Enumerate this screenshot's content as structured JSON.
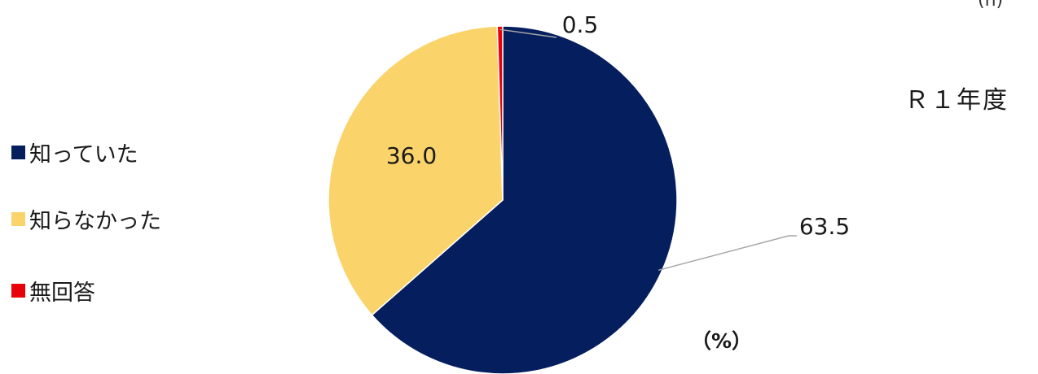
{
  "chart_data": {
    "type": "pie",
    "title": "",
    "subtitle": "Ｒ１年度",
    "unit": "（%）",
    "start_angle_deg": 0,
    "direction": "clockwise",
    "slices": [
      {
        "label": "知っていた",
        "value": 63.5,
        "color": "#041E5E",
        "data_label": "63.5"
      },
      {
        "label": "知らなかった",
        "value": 36.0,
        "color": "#FAD46B",
        "data_label": "36.0"
      },
      {
        "label": "無回答",
        "value": 0.5,
        "color": "#E8000B",
        "data_label": "0.5"
      }
    ],
    "legend": [
      "知っていた",
      "知らなかった",
      "無回答"
    ],
    "legend_position": "left"
  },
  "header": {
    "corner_text": "(n)"
  }
}
